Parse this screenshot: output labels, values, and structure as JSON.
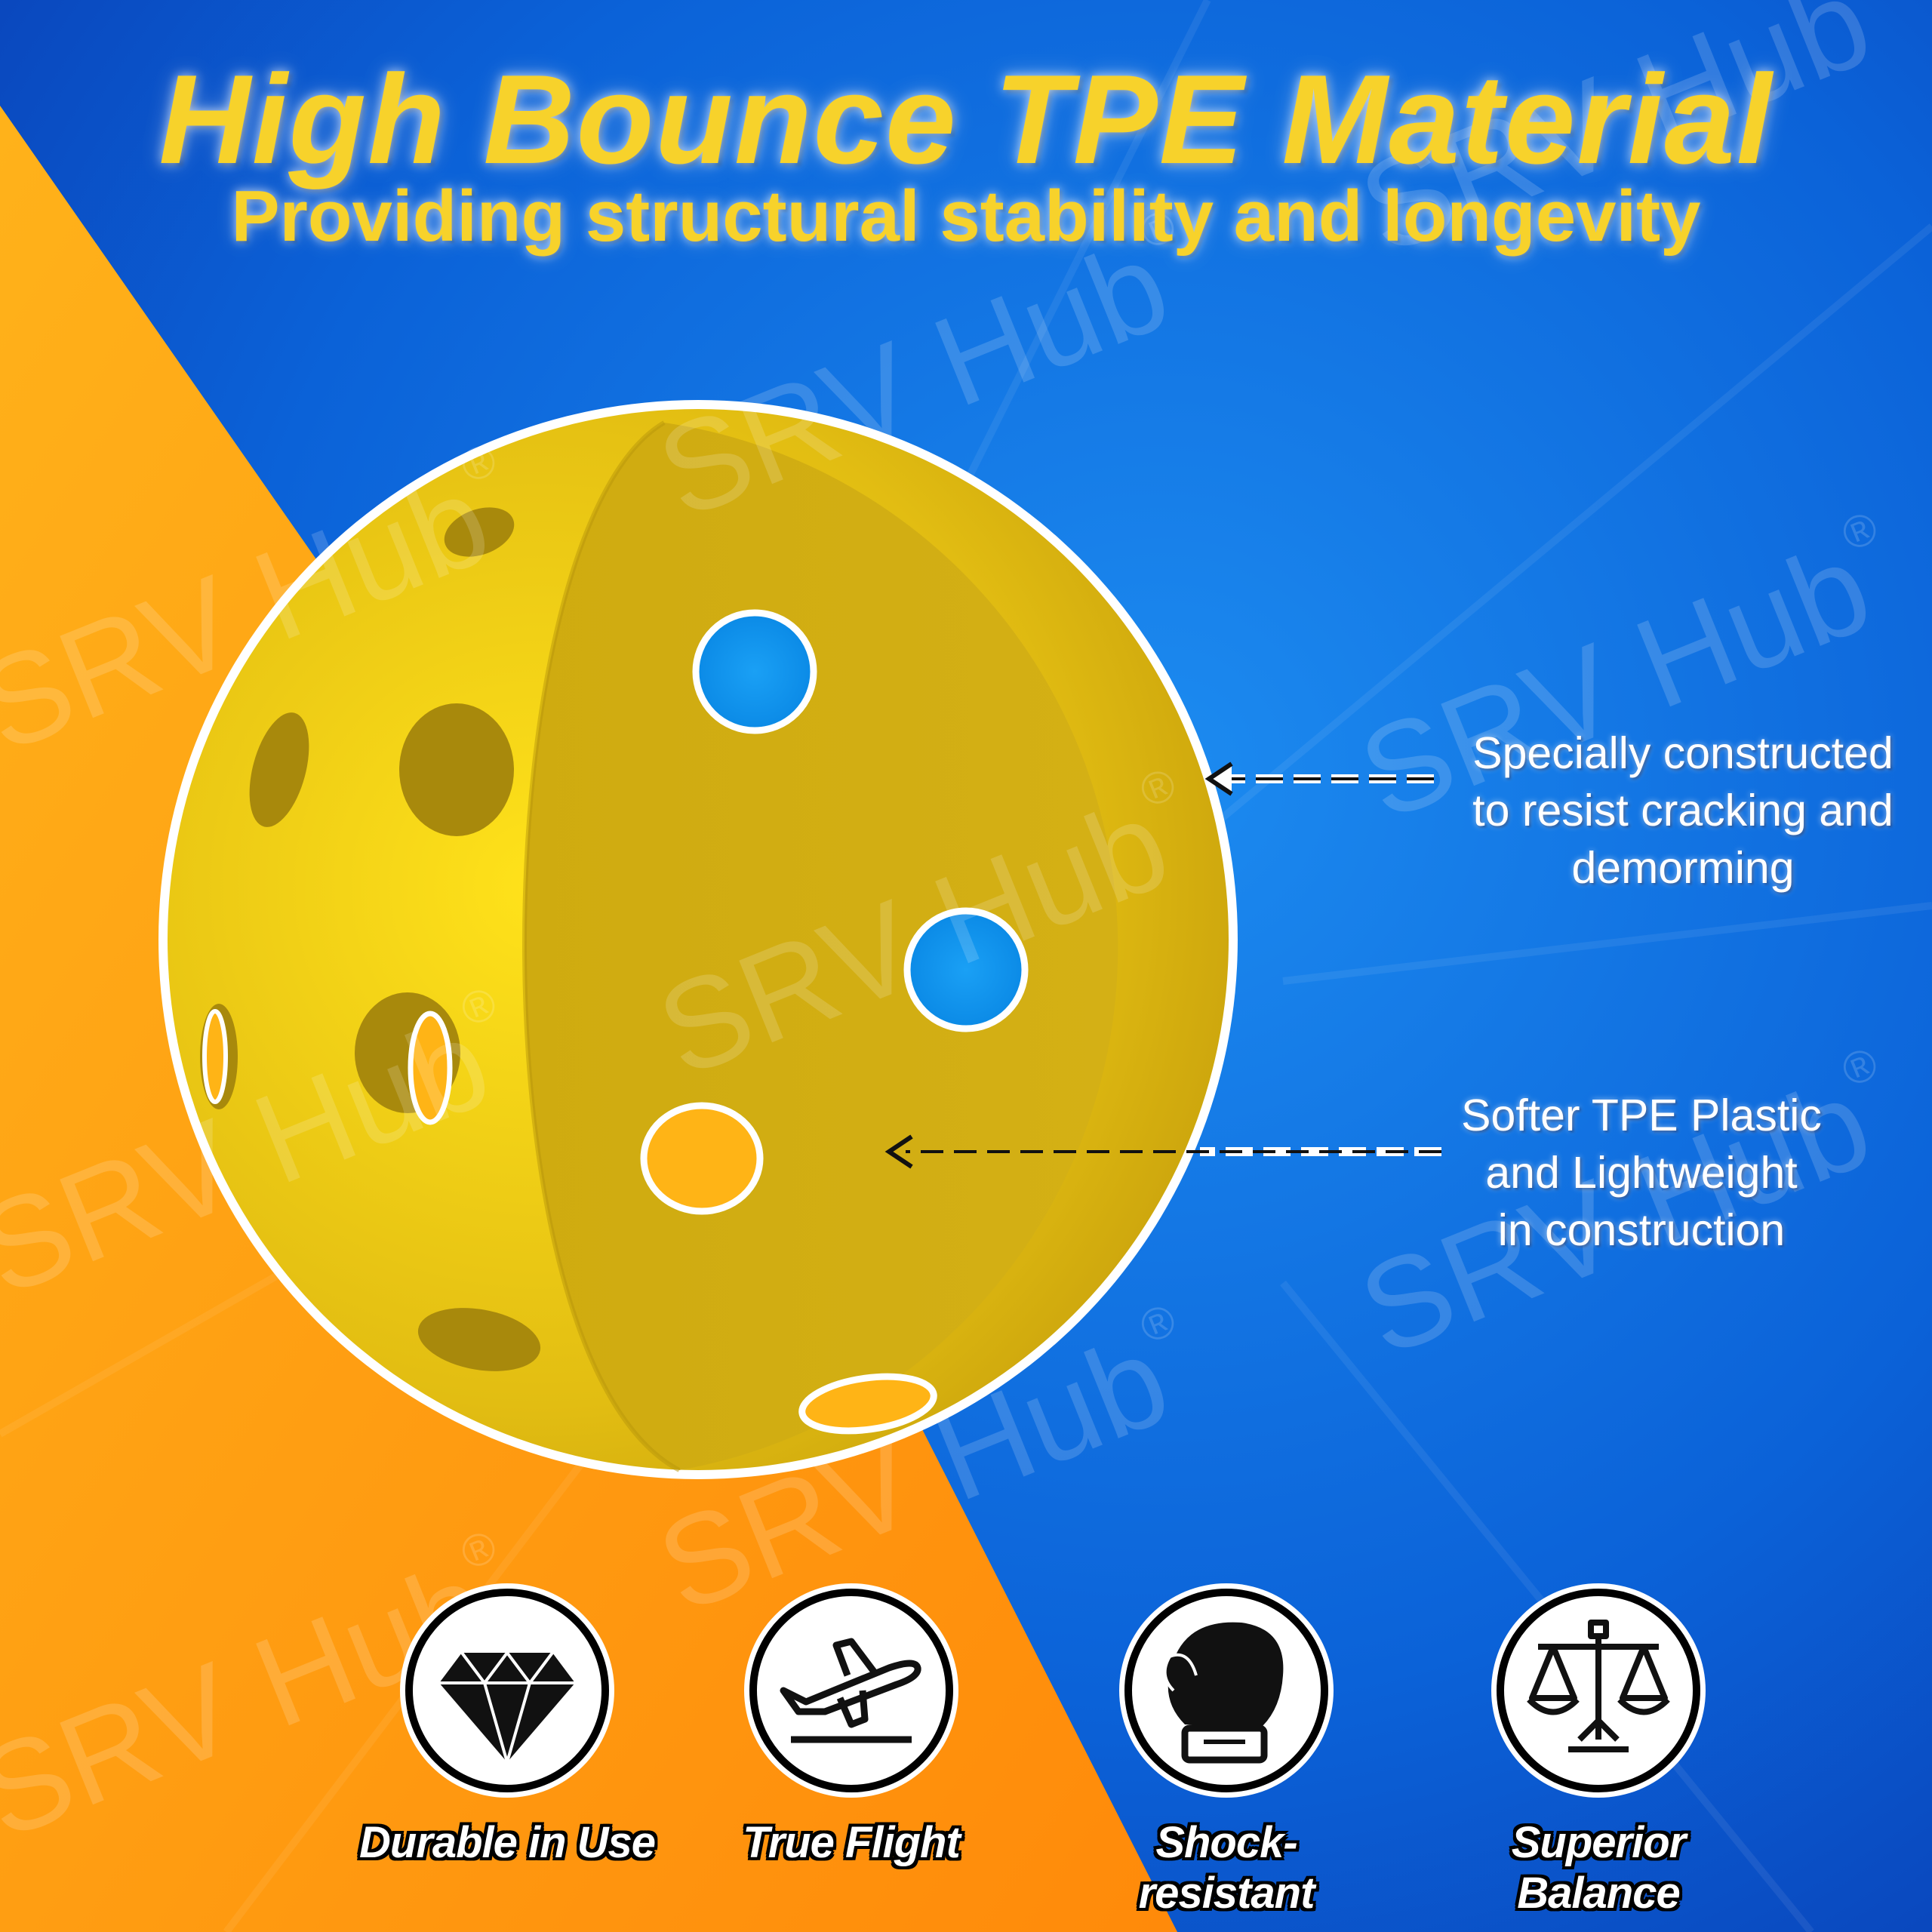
{
  "header": {
    "title": "High Bounce TPE Material",
    "subtitle": "Providing structural stability and longevity"
  },
  "callouts": [
    {
      "lines": [
        "Specially constructed",
        "to resist cracking and",
        "demorming"
      ]
    },
    {
      "lines": [
        "Softer TPE Plastic",
        "and Lightweight",
        "in construction"
      ]
    }
  ],
  "features": [
    {
      "label": "Durable in Use",
      "icon": "diamond-icon"
    },
    {
      "label": "True Flight",
      "icon": "airplane-takeoff-icon"
    },
    {
      "label": "Shock-resistant",
      "icon": "boxing-glove-icon"
    },
    {
      "label": "Superior Balance",
      "icon": "balance-scale-icon"
    }
  ],
  "watermark": {
    "text": "SRV Hub",
    "mark": "®"
  },
  "colors": {
    "blue": "#0a5fd6",
    "orange": "#ff9f12",
    "ball_yellow": "#e8c51a",
    "title_yellow": "#f7d22b"
  }
}
